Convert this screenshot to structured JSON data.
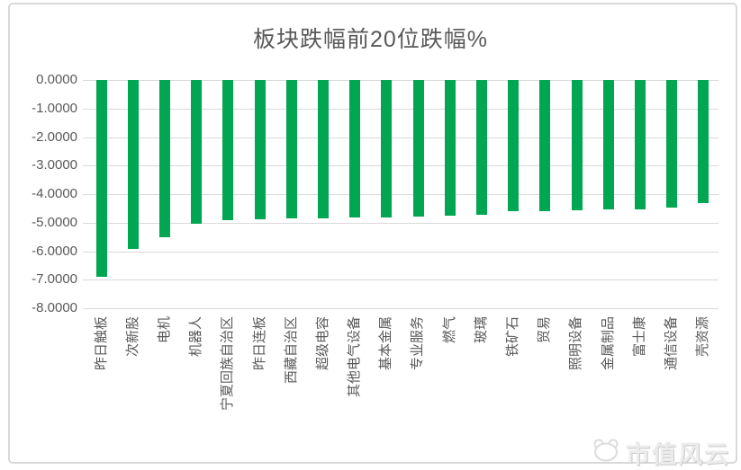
{
  "chart_data": {
    "type": "bar",
    "title": "板块跌幅前20位跌幅%",
    "categories": [
      "昨日触板",
      "次新股",
      "电机",
      "机器人",
      "宁夏回族自治区",
      "昨日连板",
      "西藏自治区",
      "超级电容",
      "其他电气设备",
      "基本金属",
      "专业服务",
      "燃气",
      "玻璃",
      "铁矿石",
      "贸易",
      "照明设备",
      "金属制品",
      "富士康",
      "通信设备",
      "壳资源"
    ],
    "values": [
      -6.9,
      -5.92,
      -5.5,
      -5.05,
      -4.9,
      -4.88,
      -4.86,
      -4.84,
      -4.82,
      -4.8,
      -4.77,
      -4.75,
      -4.73,
      -4.6,
      -4.58,
      -4.56,
      -4.54,
      -4.52,
      -4.48,
      -4.31
    ],
    "xlabel": "",
    "ylabel": "",
    "ylim": [
      -8,
      0
    ],
    "yticks": [
      "0.0000",
      "-1.0000",
      "-2.0000",
      "-3.0000",
      "-4.0000",
      "-5.0000",
      "-6.0000",
      "-7.0000",
      "-8.0000"
    ],
    "grid": true,
    "legend_position": "none",
    "bar_color": "#00A651",
    "gridline_color": "#D9D9D9",
    "axis_text_color": "#595959",
    "frame_color": "#D9D9D9"
  },
  "watermark": {
    "text": "市值风云",
    "logo": "cloud-panda-logo"
  }
}
